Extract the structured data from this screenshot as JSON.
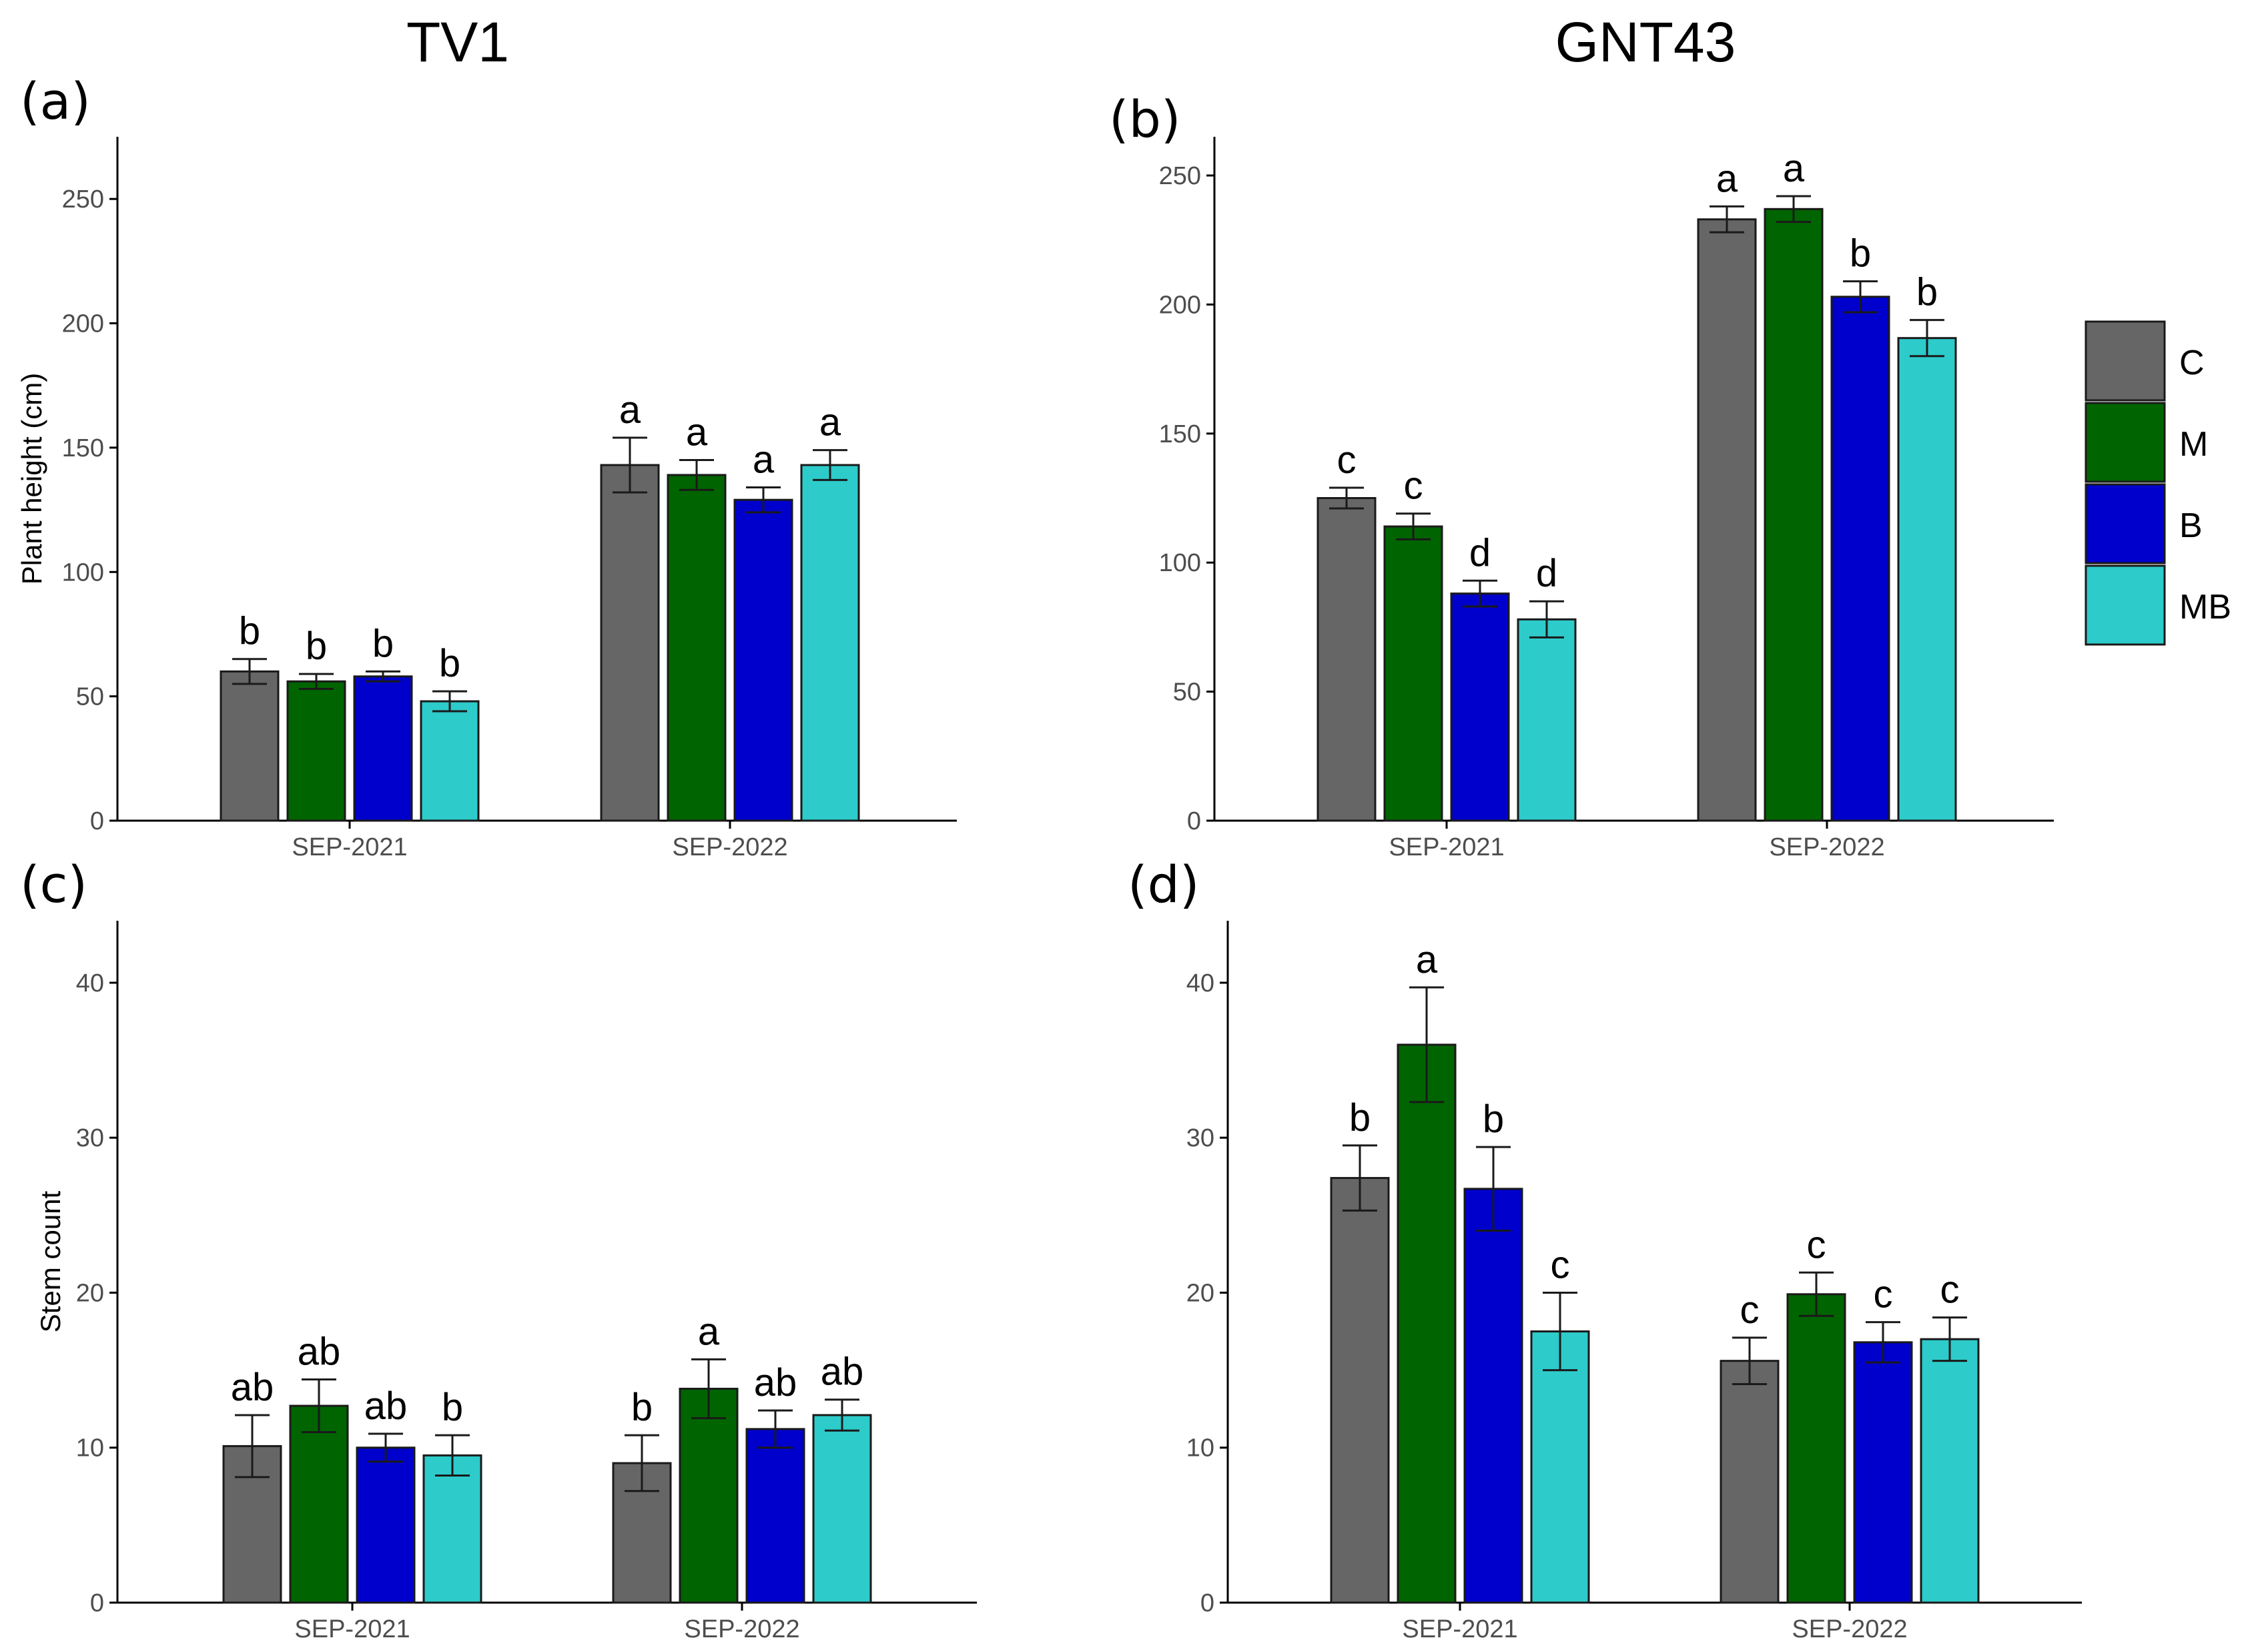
{
  "figure": {
    "column_titles": [
      "TV1",
      "GNT43"
    ]
  },
  "legend": {
    "items": [
      {
        "label": "C",
        "color": "#666666"
      },
      {
        "label": "M",
        "color": "#006400"
      },
      {
        "label": "B",
        "color": "#0000CD"
      },
      {
        "label": "MB",
        "color": "#2ECBCB"
      }
    ]
  },
  "chart_data": [
    {
      "panel": "(a)",
      "type": "bar",
      "title": "TV1",
      "ylabel": "Plant height (cm)",
      "xlabel": "",
      "categories": [
        "SEP-2021",
        "SEP-2022"
      ],
      "ylim": [
        0,
        275
      ],
      "yticks": [
        0,
        50,
        100,
        150,
        200,
        250
      ],
      "series": [
        {
          "name": "C",
          "values": [
            60,
            143
          ],
          "errors": [
            5,
            11
          ],
          "labels": [
            "b",
            "a"
          ]
        },
        {
          "name": "M",
          "values": [
            56,
            139
          ],
          "errors": [
            3,
            6
          ],
          "labels": [
            "b",
            "a"
          ]
        },
        {
          "name": "B",
          "values": [
            58,
            129
          ],
          "errors": [
            2,
            5
          ],
          "labels": [
            "b",
            "a"
          ]
        },
        {
          "name": "MB",
          "values": [
            48,
            143
          ],
          "errors": [
            4,
            6
          ],
          "labels": [
            "b",
            "a"
          ]
        }
      ]
    },
    {
      "panel": "(b)",
      "type": "bar",
      "title": "GNT43",
      "ylabel": "",
      "xlabel": "",
      "categories": [
        "SEP-2021",
        "SEP-2022"
      ],
      "ylim": [
        0,
        265
      ],
      "yticks": [
        0,
        50,
        100,
        150,
        200,
        250
      ],
      "series": [
        {
          "name": "C",
          "values": [
            125,
            233
          ],
          "errors": [
            4,
            5
          ],
          "labels": [
            "c",
            "a"
          ]
        },
        {
          "name": "M",
          "values": [
            114,
            237
          ],
          "errors": [
            5,
            5
          ],
          "labels": [
            "c",
            "a"
          ]
        },
        {
          "name": "B",
          "values": [
            88,
            203
          ],
          "errors": [
            5,
            6
          ],
          "labels": [
            "d",
            "b"
          ]
        },
        {
          "name": "MB",
          "values": [
            78,
            187
          ],
          "errors": [
            7,
            7
          ],
          "labels": [
            "d",
            "b"
          ]
        }
      ]
    },
    {
      "panel": "(c)",
      "type": "bar",
      "title": "",
      "ylabel": "Stem count",
      "xlabel": "",
      "categories": [
        "SEP-2021",
        "SEP-2022"
      ],
      "ylim": [
        0,
        44
      ],
      "yticks": [
        0,
        10,
        20,
        30,
        40
      ],
      "series": [
        {
          "name": "C",
          "values": [
            10.1,
            9.0
          ],
          "errors": [
            2.0,
            1.8
          ],
          "labels": [
            "ab",
            "b"
          ]
        },
        {
          "name": "M",
          "values": [
            12.7,
            13.8
          ],
          "errors": [
            1.7,
            1.9
          ],
          "labels": [
            "ab",
            "a"
          ]
        },
        {
          "name": "B",
          "values": [
            10.0,
            11.2
          ],
          "errors": [
            0.9,
            1.2
          ],
          "labels": [
            "ab",
            "ab"
          ]
        },
        {
          "name": "MB",
          "values": [
            9.5,
            12.1
          ],
          "errors": [
            1.3,
            1.0
          ],
          "labels": [
            "b",
            "ab"
          ]
        }
      ]
    },
    {
      "panel": "(d)",
      "type": "bar",
      "title": "",
      "ylabel": "",
      "xlabel": "",
      "categories": [
        "SEP-2021",
        "SEP-2022"
      ],
      "ylim": [
        0,
        44
      ],
      "yticks": [
        0,
        10,
        20,
        30,
        40
      ],
      "series": [
        {
          "name": "C",
          "values": [
            27.4,
            15.6
          ],
          "errors": [
            2.1,
            1.5
          ],
          "labels": [
            "b",
            "c"
          ]
        },
        {
          "name": "M",
          "values": [
            36.0,
            19.9
          ],
          "errors": [
            3.7,
            1.4
          ],
          "labels": [
            "a",
            "c"
          ]
        },
        {
          "name": "B",
          "values": [
            26.7,
            16.8
          ],
          "errors": [
            2.7,
            1.3
          ],
          "labels": [
            "b",
            "c"
          ]
        },
        {
          "name": "MB",
          "values": [
            17.5,
            17.0
          ],
          "errors": [
            2.5,
            1.4
          ],
          "labels": [
            "c",
            "c"
          ]
        }
      ]
    }
  ]
}
